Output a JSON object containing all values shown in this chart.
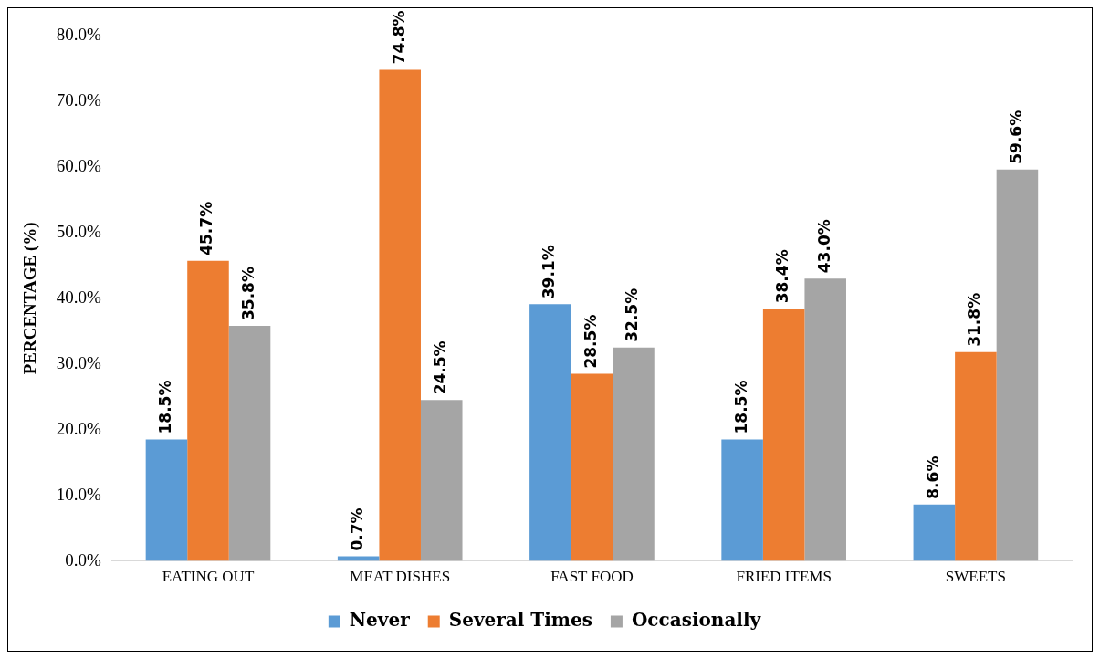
{
  "chart_data": {
    "type": "bar",
    "ylabel": "PERCENTAGE (%)",
    "categories": [
      "EATING OUT",
      "MEAT DISHES",
      "FAST FOOD",
      "FRIED ITEMS",
      "SWEETS"
    ],
    "series": [
      {
        "name": "Never",
        "color": "#5b9bd5",
        "values": [
          18.5,
          0.7,
          39.1,
          18.5,
          8.6
        ],
        "value_labels": [
          "18.5%",
          "0.7%",
          "39.1%",
          "18.5%",
          "8.6%"
        ]
      },
      {
        "name": "Several Times",
        "color": "#ed7d31",
        "values": [
          45.7,
          74.8,
          28.5,
          38.4,
          31.8
        ],
        "value_labels": [
          "45.7%",
          "74.8%",
          "28.5%",
          "38.4%",
          "31.8%"
        ]
      },
      {
        "name": "Occasionally",
        "color": "#a5a5a5",
        "values": [
          35.8,
          24.5,
          32.5,
          43.0,
          59.6
        ],
        "value_labels": [
          "35.8%",
          "24.5%",
          "32.5%",
          "43.0%",
          "59.6%"
        ]
      }
    ],
    "ylim": [
      0,
      80
    ],
    "yticks": [
      {
        "value": 0,
        "label": "0.0%"
      },
      {
        "value": 10,
        "label": "10.0%"
      },
      {
        "value": 20,
        "label": "20.0%"
      },
      {
        "value": 30,
        "label": "30.0%"
      },
      {
        "value": 40,
        "label": "40.0%"
      },
      {
        "value": 50,
        "label": "50.0%"
      },
      {
        "value": 60,
        "label": "60.0%"
      },
      {
        "value": 70,
        "label": "70.0%"
      },
      {
        "value": 80,
        "label": "80.0%"
      }
    ],
    "grid": false,
    "legend": "bottom"
  }
}
